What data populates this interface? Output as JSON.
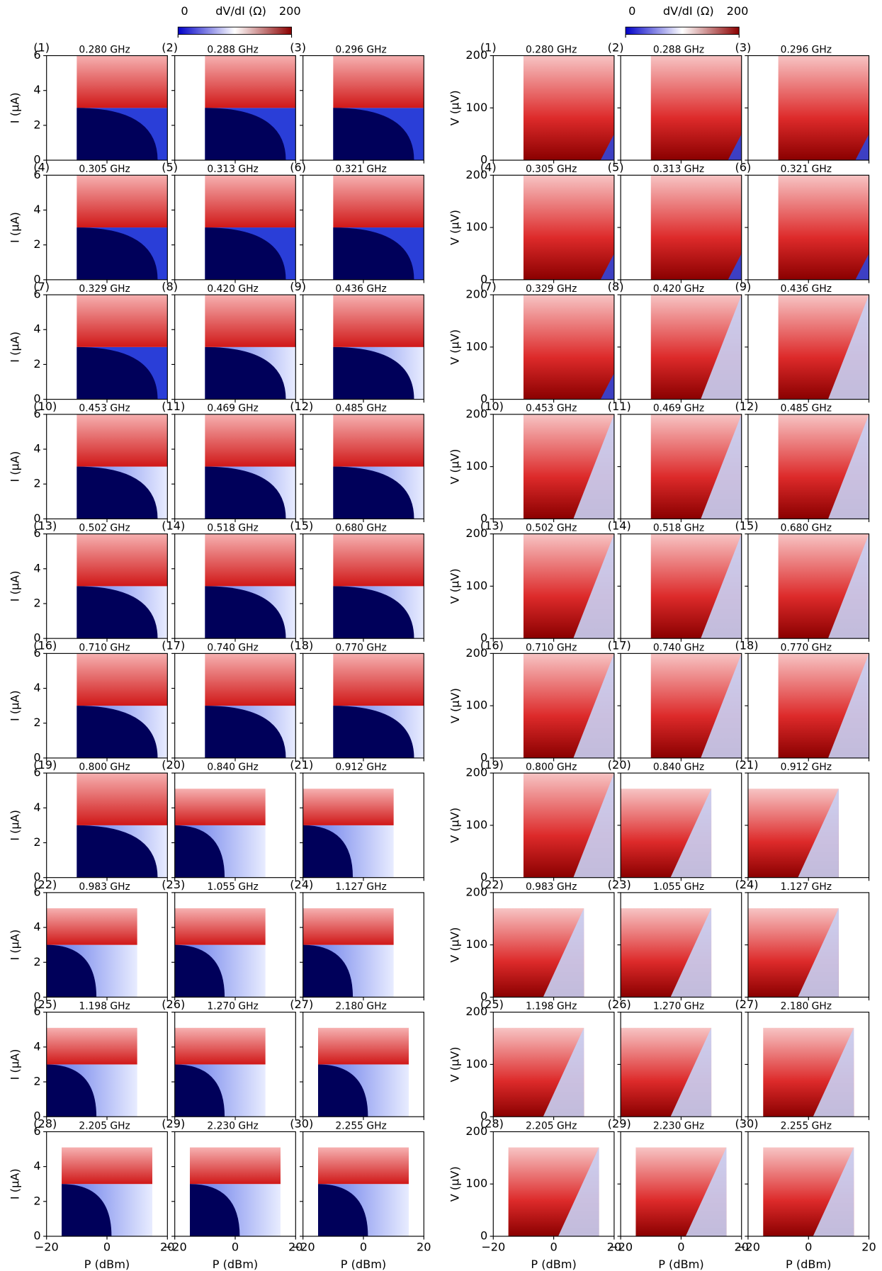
{
  "chart_data": {
    "type": "heatmap-grid",
    "colorbar": {
      "label": "dV/dI (Ω)",
      "ticks": [
        0,
        200
      ]
    },
    "left": {
      "ylabel": "I (μA)",
      "ylim": [
        0,
        6
      ],
      "yticks": [
        0,
        2,
        4,
        6
      ]
    },
    "right": {
      "ylabel": "V (μV)",
      "ylim": [
        0,
        200
      ],
      "yticks": [
        0,
        100,
        200
      ]
    },
    "xlabel": "P (dBm)",
    "xlim": [
      -20,
      20
    ],
    "xticks": [
      {
        "value": -20,
        "label": "−20"
      },
      0,
      20
    ],
    "panels": [
      {
        "label": "(1)",
        "freq": "0.280 GHz"
      },
      {
        "label": "(2)",
        "freq": "0.288 GHz"
      },
      {
        "label": "(3)",
        "freq": "0.296 GHz"
      },
      {
        "label": "(4)",
        "freq": "0.305 GHz"
      },
      {
        "label": "(5)",
        "freq": "0.313 GHz"
      },
      {
        "label": "(6)",
        "freq": "0.321 GHz"
      },
      {
        "label": "(7)",
        "freq": "0.329 GHz"
      },
      {
        "label": "(8)",
        "freq": "0.420 GHz"
      },
      {
        "label": "(9)",
        "freq": "0.436 GHz"
      },
      {
        "label": "(10)",
        "freq": "0.453 GHz"
      },
      {
        "label": "(11)",
        "freq": "0.469 GHz"
      },
      {
        "label": "(12)",
        "freq": "0.485 GHz"
      },
      {
        "label": "(13)",
        "freq": "0.502 GHz"
      },
      {
        "label": "(14)",
        "freq": "0.518 GHz"
      },
      {
        "label": "(15)",
        "freq": "0.680 GHz"
      },
      {
        "label": "(16)",
        "freq": "0.710 GHz"
      },
      {
        "label": "(17)",
        "freq": "0.740 GHz"
      },
      {
        "label": "(18)",
        "freq": "0.770 GHz"
      },
      {
        "label": "(19)",
        "freq": "0.800 GHz"
      },
      {
        "label": "(20)",
        "freq": "0.840 GHz"
      },
      {
        "label": "(21)",
        "freq": "0.912 GHz"
      },
      {
        "label": "(22)",
        "freq": "0.983 GHz"
      },
      {
        "label": "(23)",
        "freq": "1.055 GHz"
      },
      {
        "label": "(24)",
        "freq": "1.127 GHz"
      },
      {
        "label": "(25)",
        "freq": "1.198 GHz"
      },
      {
        "label": "(26)",
        "freq": "1.270 GHz"
      },
      {
        "label": "(27)",
        "freq": "2.180 GHz"
      },
      {
        "label": "(28)",
        "freq": "2.205 GHz"
      },
      {
        "label": "(29)",
        "freq": "2.230 GHz"
      },
      {
        "label": "(30)",
        "freq": "2.255 GHz"
      }
    ]
  }
}
